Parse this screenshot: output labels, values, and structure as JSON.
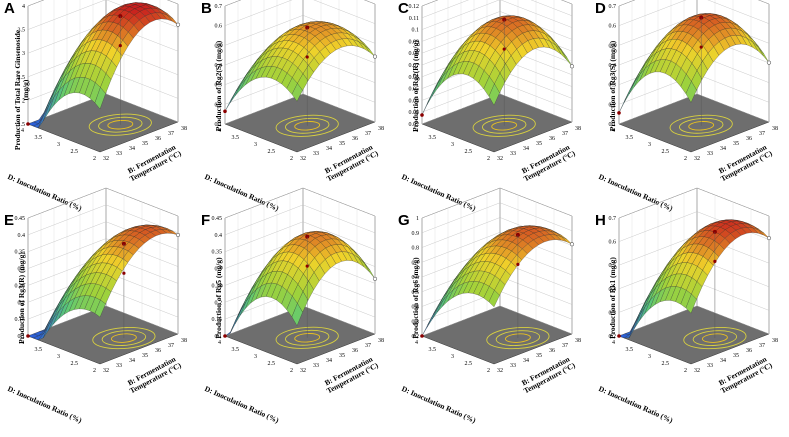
{
  "chart_data": [
    {
      "type": "surface",
      "panel": "A",
      "zlabel": "Production of Total Rare Ginsenoside (mg/g)",
      "zticks": [
        "1.5",
        "2",
        "2.5",
        "3",
        "3.5",
        "4"
      ],
      "zlim": [
        1.5,
        4
      ],
      "peak": 3.8,
      "corner_min": 1.5,
      "corner_max": 2.8,
      "contour_center": [
        35.5,
        2.7
      ]
    },
    {
      "type": "surface",
      "panel": "B",
      "zlabel": "Production of Rg2(S) (mg/g)",
      "zticks": [
        "0.1",
        "0.2",
        "0.3",
        "0.4",
        "0.5",
        "0.6",
        "0.7"
      ],
      "zlim": [
        0.1,
        0.7
      ],
      "peak": 0.6,
      "corner_min": 0.2,
      "corner_max": 0.35,
      "contour_center": [
        35,
        2.8
      ]
    },
    {
      "type": "surface",
      "panel": "C",
      "zlabel": "Production of Rg2(R) (mg/g)",
      "zticks": [
        "0.02",
        "0.03",
        "0.04",
        "0.05",
        "0.06",
        "0.07",
        "0.08",
        "0.09",
        "0.1",
        "0.11",
        "0.12"
      ],
      "zlim": [
        0.02,
        0.12
      ],
      "peak": 0.11,
      "corner_min": 0.035,
      "corner_max": 0.05,
      "contour_center": [
        35,
        2.8
      ]
    },
    {
      "type": "surface",
      "panel": "D",
      "zlabel": "Production of Rg3(S) (mg/g)",
      "zticks": [
        "0.1",
        "0.2",
        "0.3",
        "0.4",
        "0.5",
        "0.6",
        "0.7"
      ],
      "zlim": [
        0.1,
        0.7
      ],
      "peak": 0.65,
      "corner_min": 0.2,
      "corner_max": 0.3,
      "contour_center": [
        35,
        2.8
      ]
    },
    {
      "type": "surface",
      "panel": "E",
      "zlabel": "Production of Rg3(R) (mg/g)",
      "zticks": [
        "0.1",
        "0.15",
        "0.2",
        "0.25",
        "0.3",
        "0.35",
        "0.4",
        "0.45"
      ],
      "zlim": [
        0.1,
        0.45
      ],
      "peak": 0.38,
      "corner_min": 0.1,
      "corner_max": 0.3,
      "contour_center": [
        35.5,
        2.6
      ]
    },
    {
      "type": "surface",
      "panel": "F",
      "zlabel": "Production of Rg5 (mg/g)",
      "zticks": [
        "0.1",
        "0.15",
        "0.2",
        "0.25",
        "0.3",
        "0.35",
        "0.4",
        "0.45"
      ],
      "zlim": [
        0.1,
        0.45
      ],
      "peak": 0.4,
      "corner_min": 0.1,
      "corner_max": 0.2,
      "contour_center": [
        35,
        2.8
      ]
    },
    {
      "type": "surface",
      "panel": "G",
      "zlabel": "Production of Rg6 (mg/g)",
      "zticks": [
        "0.2",
        "0.3",
        "0.4",
        "0.5",
        "0.6",
        "0.7",
        "0.8",
        "0.9",
        "1"
      ],
      "zlim": [
        0.2,
        1
      ],
      "peak": 0.9,
      "corner_min": 0.4,
      "corner_max": 0.6,
      "contour_center": [
        35.5,
        2.6
      ]
    },
    {
      "type": "surface",
      "panel": "H",
      "zlabel": "Production of Rk1 (mg/g)",
      "zticks": [
        "0.2",
        "0.3",
        "0.4",
        "0.5",
        "0.6",
        "0.7"
      ],
      "zlim": [
        0.2,
        0.7
      ],
      "peak": 0.65,
      "corner_min": 0.25,
      "corner_max": 0.45,
      "contour_center": [
        35.5,
        2.6
      ]
    }
  ],
  "axes": {
    "x": {
      "label_line1": "B: Fermentation",
      "label_line2": "Temperature (°C)",
      "ticks": [
        "32",
        "33",
        "34",
        "35",
        "36",
        "37",
        "38"
      ],
      "range": [
        32,
        38
      ]
    },
    "y": {
      "label": "D: Inoculation Ratio (%)",
      "ticks": [
        "2",
        "2.5",
        "3",
        "3.5",
        "4"
      ],
      "range": [
        2,
        4
      ]
    }
  },
  "colors": {
    "floor": "#6e6e6e",
    "low": "#2c5fd6",
    "mid": "#9fd23a",
    "high": "#f0d22a",
    "top": "#c81e1e",
    "contour": "#e8c020",
    "point": "#8b0000"
  }
}
